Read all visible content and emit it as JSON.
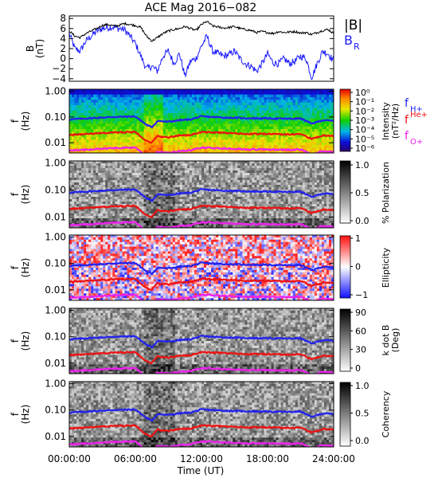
{
  "title": "ACE Mag 2016−082",
  "xlabel": "Time (UT)",
  "x_ticks": [
    "00:00:00",
    "06:00:00",
    "12:00:00",
    "18:00:00",
    "24:00:00"
  ],
  "colors": {
    "b_total": "#000000",
    "b_r": "#1a1aff",
    "f_h": "#2222ee",
    "f_he": "#ee1111",
    "f_o": "#ee22ee"
  },
  "panel1": {
    "ylabel_top": "B",
    "ylabel_bottom": "(nT)",
    "yticks": [
      "8",
      "6",
      "4",
      "2",
      "0",
      "−2",
      "−4"
    ],
    "legend_b": "|B|",
    "legend_br": "B",
    "legend_br_sub": "R"
  },
  "freq_ylabel_top": "f",
  "freq_ylabel_bottom": "(Hz)",
  "freq_ticks": [
    "1.00",
    "0.10",
    "0.01"
  ],
  "line_legend": {
    "h_main": "f",
    "h_sub": "H+",
    "he_main": "f",
    "he_sub": "He+",
    "o_main": "f",
    "o_sub": "O+"
  },
  "cbar_intensity": {
    "label_line1": "Intensity",
    "label_line2": "(nT²/Hz)",
    "ticks": [
      "10⁰",
      "10⁻¹",
      "10⁻²",
      "10⁻³",
      "10⁻⁴",
      "10⁻⁵",
      "10⁻⁶"
    ]
  },
  "cbar_polarization": {
    "label": "% Polarization",
    "ticks": [
      "1.0",
      "0.5",
      "0.0"
    ]
  },
  "cbar_ellipticity": {
    "label": "Ellipticity",
    "ticks": [
      "1",
      "0",
      "−1"
    ]
  },
  "cbar_kdotb": {
    "label_line1": "k dot B",
    "label_line2": "(Deg)",
    "ticks": [
      "90",
      "60",
      "30",
      "0"
    ]
  },
  "cbar_coherency": {
    "label": "Coherency",
    "ticks": [
      "1.0",
      "0.5",
      "0.0"
    ]
  },
  "chart_data": [
    {
      "type": "line",
      "title": "ACE Mag 2016−082",
      "xlabel": "Time (UT)",
      "ylabel": "B (nT)",
      "xlim": [
        0,
        24
      ],
      "ylim": [
        -4.5,
        8.5
      ],
      "series": [
        {
          "name": "|B|",
          "x": [
            0,
            0.5,
            1,
            1.5,
            2,
            2.5,
            3,
            3.5,
            4,
            4.5,
            5,
            5.5,
            6,
            6.5,
            7,
            7.5,
            8,
            8.5,
            9,
            9.5,
            10,
            10.5,
            11,
            11.5,
            12,
            12.5,
            13,
            13.5,
            14,
            14.5,
            15,
            15.5,
            16,
            16.5,
            17,
            17.5,
            18,
            18.5,
            19,
            19.5,
            20,
            20.5,
            21,
            21.5,
            22,
            22.5,
            23,
            23.5,
            24
          ],
          "values": [
            5.5,
            4.5,
            4.2,
            5.0,
            5.5,
            6.0,
            6.6,
            6.8,
            6.5,
            6.6,
            7.0,
            6.8,
            6.6,
            6.2,
            4.5,
            3.5,
            4.2,
            5.0,
            5.5,
            5.8,
            6.0,
            6.4,
            6.0,
            5.6,
            6.8,
            7.4,
            6.5,
            6.3,
            6.1,
            6.2,
            6.4,
            6.0,
            5.8,
            5.6,
            5.2,
            5.4,
            5.2,
            5.0,
            5.4,
            5.2,
            5.3,
            5.4,
            5.1,
            5.2,
            4.8,
            5.2,
            5.6,
            5.8,
            5.0
          ]
        },
        {
          "name": "B",
          "x": [
            0,
            0.5,
            1,
            1.5,
            2,
            2.5,
            3,
            3.5,
            4,
            4.5,
            5,
            5.5,
            6,
            6.5,
            7,
            7.5,
            8,
            8.5,
            9,
            9.5,
            10,
            10.5,
            11,
            11.5,
            12,
            12.5,
            13,
            13.5,
            14,
            14.5,
            15,
            15.5,
            16,
            16.5,
            17,
            17.5,
            18,
            18.5,
            19,
            19.5,
            20,
            20.5,
            21,
            21.5,
            22,
            22.5,
            23,
            23.5,
            24
          ],
          "values": [
            5.0,
            2.0,
            1.5,
            3.5,
            4.5,
            5.5,
            6.0,
            6.2,
            6.3,
            6.0,
            5.8,
            4.5,
            3.0,
            0.5,
            -2.0,
            -1.5,
            -2.5,
            0.5,
            1.5,
            -1.0,
            1.0,
            -3.5,
            -0.5,
            0.0,
            2.5,
            4.5,
            1.5,
            1.0,
            0.5,
            0.8,
            1.5,
            0.0,
            -1.0,
            -1.5,
            -2.5,
            -1.0,
            1.0,
            -0.8,
            -1.0,
            0.0,
            -1.0,
            -0.5,
            0.5,
            0.0,
            -3.8,
            -1.0,
            1.5,
            1.0,
            -0.5
          ]
        }
      ]
    },
    {
      "type": "heatmap",
      "ylabel": "f (Hz)",
      "colorbar_label": "Intensity (nT²/Hz)",
      "yscale": "log",
      "ylim": [
        0.004,
        1.2
      ],
      "xlim": [
        0,
        24
      ],
      "series": [
        {
          "name": "f",
          "x": [
            0,
            2,
            4,
            6,
            7,
            7.5,
            8,
            9,
            10,
            11,
            12,
            14,
            16,
            18,
            20,
            21,
            22,
            23,
            24
          ],
          "values": [
            0.08,
            0.09,
            0.1,
            0.105,
            0.05,
            0.04,
            0.07,
            0.065,
            0.075,
            0.08,
            0.105,
            0.095,
            0.09,
            0.088,
            0.085,
            0.088,
            0.055,
            0.075,
            0.07
          ]
        },
        {
          "name": "f",
          "x": [
            0,
            2,
            4,
            6,
            7,
            7.5,
            8,
            9,
            10,
            11,
            12,
            14,
            16,
            18,
            20,
            21,
            22,
            23,
            24
          ],
          "values": [
            0.02,
            0.022,
            0.025,
            0.026,
            0.012,
            0.01,
            0.018,
            0.016,
            0.019,
            0.02,
            0.026,
            0.024,
            0.022,
            0.022,
            0.021,
            0.022,
            0.014,
            0.019,
            0.018
          ]
        },
        {
          "name": "f",
          "x": [
            0,
            2,
            4,
            6,
            7,
            7.5,
            8,
            9,
            10,
            11,
            12,
            14,
            16,
            18,
            20,
            21,
            22,
            23,
            24
          ],
          "values": [
            0.005,
            0.0055,
            0.0062,
            0.0065,
            0.003,
            0.0025,
            0.0045,
            0.004,
            0.0047,
            0.005,
            0.0065,
            0.006,
            0.0055,
            0.0055,
            0.0053,
            0.0055,
            0.0035,
            0.0047,
            0.0045
          ]
        }
      ]
    },
    {
      "type": "heatmap",
      "ylabel": "f (Hz)",
      "colorbar_label": "% Polarization",
      "colorbar_range": [
        0,
        1
      ]
    },
    {
      "type": "heatmap",
      "ylabel": "f (Hz)",
      "colorbar_label": "Ellipticity",
      "colorbar_range": [
        -1,
        1
      ]
    },
    {
      "type": "heatmap",
      "ylabel": "f (Hz)",
      "colorbar_label": "k dot B (Deg)",
      "colorbar_range": [
        0,
        90
      ]
    },
    {
      "type": "heatmap",
      "ylabel": "f (Hz)",
      "colorbar_label": "Coherency",
      "colorbar_range": [
        0,
        1
      ]
    }
  ]
}
